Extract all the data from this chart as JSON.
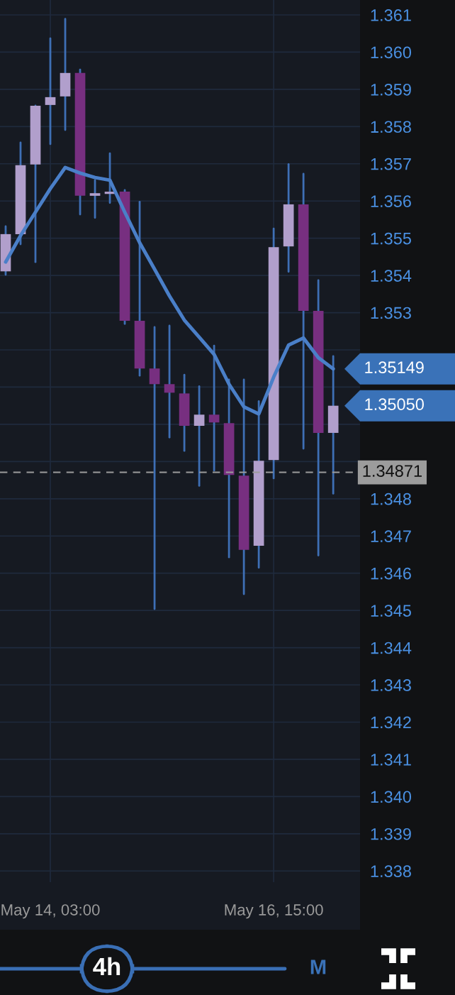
{
  "chart_data": {
    "type": "candlestick",
    "categories": [
      null,
      null,
      null,
      "May 14, 03:00",
      null,
      null,
      null,
      null,
      null,
      null,
      null,
      null,
      null,
      null,
      null,
      null,
      null,
      null,
      "May 16, 15:00",
      null,
      null,
      null,
      null
    ],
    "ohlc": [
      [
        1.35411,
        1.35532,
        1.35402,
        1.35511
      ],
      [
        1.35511,
        1.35757,
        1.35484,
        1.35696
      ],
      [
        1.35698,
        1.35856,
        1.35436,
        1.35856
      ],
      [
        1.35858,
        1.36037,
        1.35753,
        1.35879
      ],
      [
        1.35881,
        1.36089,
        1.35791,
        1.35944
      ],
      [
        1.35944,
        1.35953,
        1.35564,
        1.35614
      ],
      [
        1.35614,
        1.35656,
        1.35555,
        1.35621
      ],
      [
        1.35619,
        1.35728,
        1.35595,
        1.35625
      ],
      [
        1.35625,
        1.35629,
        1.3527,
        1.35278
      ],
      [
        1.35278,
        1.35598,
        1.35131,
        1.3515
      ],
      [
        1.3515,
        1.35261,
        1.34504,
        1.35108
      ],
      [
        1.35108,
        1.35265,
        1.34965,
        1.35085
      ],
      [
        1.35083,
        1.35133,
        1.34929,
        1.34996
      ],
      [
        1.34996,
        1.35102,
        1.34835,
        1.35026
      ],
      [
        1.35026,
        1.35211,
        1.34876,
        1.35005
      ],
      [
        1.35003,
        1.3512,
        1.34643,
        1.34864
      ],
      [
        1.34862,
        1.3512,
        1.34544,
        1.34663
      ],
      [
        1.34674,
        1.35062,
        1.34615,
        1.34902
      ],
      [
        1.34904,
        1.35526,
        1.34855,
        1.35476
      ],
      [
        1.35478,
        1.35699,
        1.3541,
        1.35591
      ],
      [
        1.35591,
        1.35673,
        1.34935,
        1.35305
      ],
      [
        1.35305,
        1.35387,
        1.34648,
        1.34977
      ],
      [
        1.34977,
        1.35183,
        1.34814,
        1.3505
      ]
    ],
    "colors": [
      "#b19fcc",
      "#b19fcc",
      "#b19fcc",
      "#b19fcc",
      "#b19fcc",
      "#772f80",
      "#b19fcc",
      "#b19fcc",
      "#772f80",
      "#772f80",
      "#772f80",
      "#772f80",
      "#772f80",
      "#b19fcc",
      "#772f80",
      "#772f80",
      "#772f80",
      "#b19fcc",
      "#b19fcc",
      "#b19fcc",
      "#772f80",
      "#772f80",
      "#b19fcc"
    ],
    "color": "#3e6fb5",
    "series": [
      {
        "type": "line",
        "color": "#4a7fc8",
        "values": [
          1.35436,
          1.35507,
          1.3557,
          1.35633,
          1.3569,
          1.35675,
          1.35663,
          1.35656,
          1.3557,
          1.35488,
          1.35417,
          1.35345,
          1.3528,
          1.35234,
          1.35188,
          1.35108,
          1.35047,
          1.35028,
          1.35127,
          1.35213,
          1.35232,
          1.35179,
          1.35149
        ]
      }
    ],
    "ylim": [
      1.3377,
      1.3614
    ],
    "yticks": [
      1.338,
      1.339,
      {
        "value": 1.34,
        "label": "1.340"
      },
      1.341,
      1.342,
      1.343,
      1.344,
      1.345,
      1.346,
      1.347,
      1.348,
      {
        "value": 1.349,
        "label": null
      },
      {
        "value": 1.35,
        "label": null
      },
      {
        "value": 1.351,
        "label": null
      },
      {
        "value": 1.352,
        "label": null
      },
      1.353,
      1.354,
      1.355,
      1.356,
      1.357,
      1.358,
      1.359,
      {
        "value": 1.36,
        "label": "1.360"
      },
      1.361
    ],
    "grid": true,
    "ref_lines": [
      {
        "axis": "y",
        "value": 1.34871,
        "label": "1.34871",
        "color": "#9c9c9c",
        "line_style": "dashed"
      }
    ],
    "annotations": [
      "1.35149",
      "1.35050",
      "4h",
      "M"
    ]
  }
}
